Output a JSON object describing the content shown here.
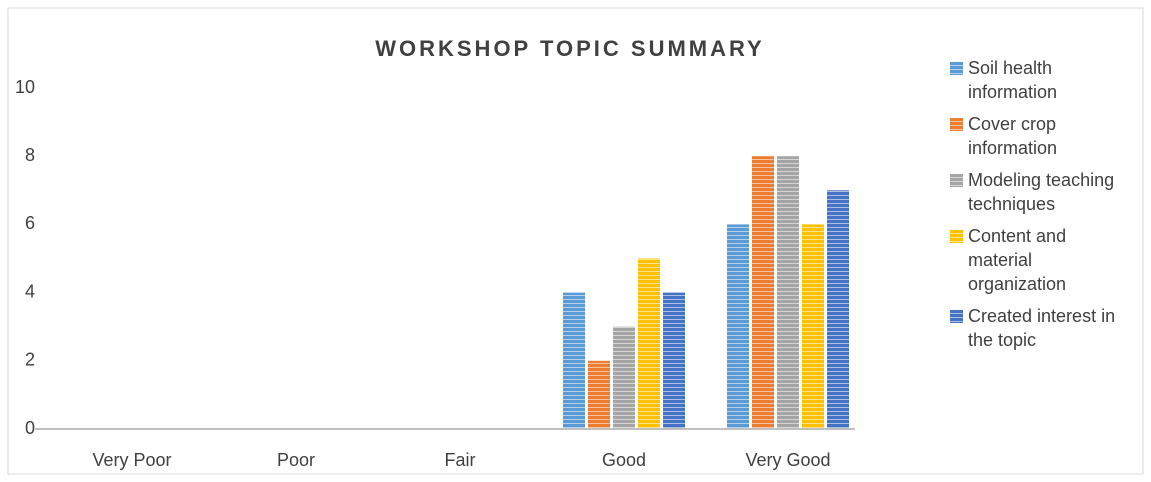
{
  "chart_data": {
    "type": "bar",
    "title": "WORKSHOP TOPIC SUMMARY",
    "categories": [
      "Very Poor",
      "Poor",
      "Fair",
      "Good",
      "Very Good"
    ],
    "series": [
      {
        "name": "Soil health information",
        "color": "#5b9bd5",
        "values": [
          0,
          0,
          0,
          4,
          6
        ]
      },
      {
        "name": "Cover crop information",
        "color": "#ed7d31",
        "values": [
          0,
          0,
          0,
          2,
          8
        ]
      },
      {
        "name": "Modeling teaching techniques",
        "color": "#a5a5a5",
        "values": [
          0,
          0,
          0,
          3,
          8
        ]
      },
      {
        "name": "Content and material organization",
        "color": "#ffc000",
        "values": [
          0,
          0,
          0,
          5,
          6
        ]
      },
      {
        "name": "Created interest in the topic",
        "color": "#4472c4",
        "values": [
          0,
          0,
          0,
          4,
          7
        ]
      }
    ],
    "ylim": [
      0,
      10
    ],
    "yticks": [
      0,
      2,
      4,
      6,
      8,
      10
    ],
    "grid": false,
    "legend": "right"
  }
}
